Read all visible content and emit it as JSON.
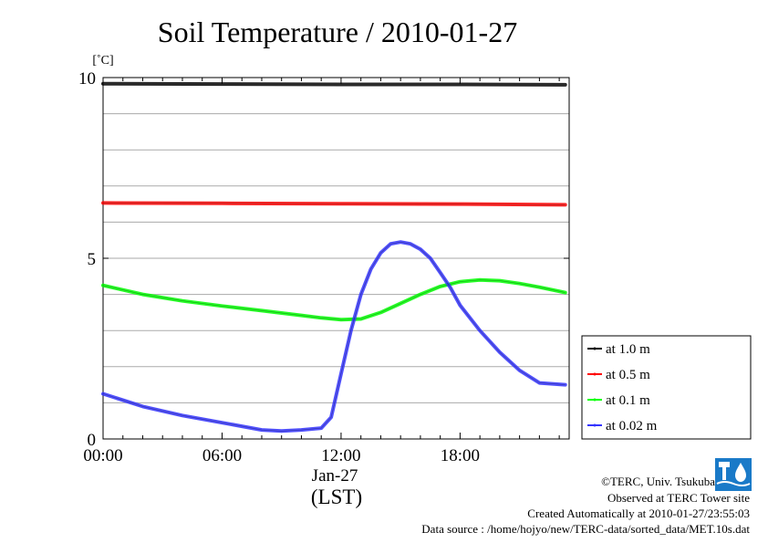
{
  "chart_data": {
    "type": "line",
    "title": "Soil Temperature / 2010-01-27",
    "xlabel": "(LST)",
    "ylabel": "[˚C]",
    "xticks": [
      "00:00",
      "06:00",
      "12:00",
      "18:00"
    ],
    "xtick_hours": [
      0,
      6,
      12,
      18
    ],
    "date_label": "Jan-27",
    "xlim": [
      0,
      23.5
    ],
    "ylim": [
      0,
      10
    ],
    "yticks": [
      0,
      5,
      10
    ],
    "grid_step": 1,
    "grid": true,
    "legend_position": "right-lower",
    "series": [
      {
        "name": "at 1.0 m",
        "color": "#000000",
        "x": [
          0,
          6,
          12,
          18,
          23.3
        ],
        "y": [
          9.83,
          9.82,
          9.81,
          9.81,
          9.8
        ]
      },
      {
        "name": "at 0.5 m",
        "color": "#ff0000",
        "x": [
          0,
          6,
          12,
          18,
          23.3
        ],
        "y": [
          6.53,
          6.52,
          6.51,
          6.5,
          6.48
        ]
      },
      {
        "name": "at 0.1 m",
        "color": "#00ff00",
        "x": [
          0,
          2,
          4,
          6,
          8,
          10,
          11,
          12,
          13,
          14,
          15,
          16,
          17,
          18,
          19,
          20,
          21,
          22,
          23.3
        ],
        "y": [
          4.25,
          4.0,
          3.82,
          3.68,
          3.55,
          3.42,
          3.35,
          3.3,
          3.32,
          3.5,
          3.75,
          4.0,
          4.22,
          4.35,
          4.4,
          4.38,
          4.3,
          4.2,
          4.05
        ]
      },
      {
        "name": "at 0.02 m",
        "color": "#3333ff",
        "x": [
          0,
          2,
          4,
          6,
          7,
          8,
          9,
          10,
          11,
          11.5,
          12,
          12.5,
          13,
          13.5,
          14,
          14.5,
          15,
          15.5,
          16,
          16.5,
          17,
          17.5,
          18,
          19,
          20,
          21,
          22,
          23.3
        ],
        "y": [
          1.25,
          0.9,
          0.65,
          0.45,
          0.35,
          0.25,
          0.22,
          0.25,
          0.3,
          0.6,
          1.8,
          3.0,
          4.0,
          4.7,
          5.15,
          5.4,
          5.45,
          5.4,
          5.25,
          5.0,
          4.6,
          4.2,
          3.7,
          3.0,
          2.4,
          1.9,
          1.55,
          1.5
        ]
      }
    ]
  },
  "footer": {
    "copyright": "©TERC, Univ. Tsukuba",
    "observed": "Observed at TERC Tower site",
    "created": "Created Automatically at 2010-01-27/23:55:03",
    "source": "Data source : /home/hojyo/new/TERC-data/sorted_data/MET.10s.dat",
    "logo_text": "TERC"
  }
}
